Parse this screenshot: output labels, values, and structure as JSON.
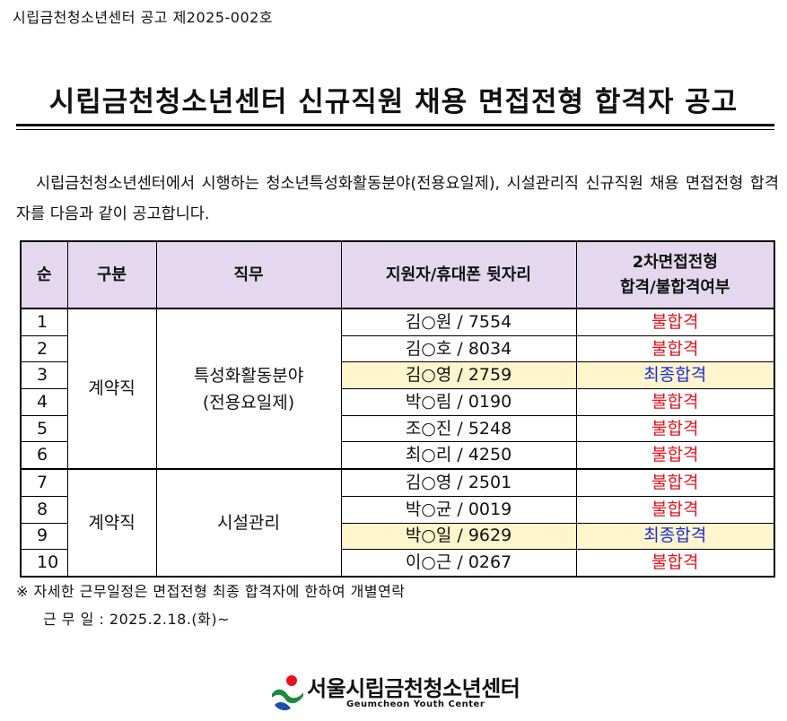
{
  "header": {
    "doc_number": "시립금천청소년센터 공고 제2025-002호",
    "title": "시립금천청소년센터 신규직원 채용 면접전형 합격자 공고"
  },
  "intro": {
    "text": "시립금천청소년센터에서 시행하는 청소년특성화활동분야(전용요일제), 시설관리직 신규직원 채용 면접전형 합격자를 다음과 같이 공고합니다."
  },
  "table": {
    "headers": {
      "num": "순",
      "type": "구분",
      "duty": "직무",
      "applicant": "지원자/휴대폰 뒷자리",
      "result_line1": "2차면접전형",
      "result_line2": "합격/불합격여부"
    },
    "groups": [
      {
        "type": "계약직",
        "duty_line1": "특성화활동분야",
        "duty_line2": "(전용요일제)"
      },
      {
        "type": "계약직",
        "duty_line1": "시설관리",
        "duty_line2": ""
      }
    ],
    "rows": [
      {
        "num": "1",
        "applicant": "김○원 / 7554",
        "result": "불합격",
        "status": "fail"
      },
      {
        "num": "2",
        "applicant": "김○호 / 8034",
        "result": "불합격",
        "status": "fail"
      },
      {
        "num": "3",
        "applicant": "김○영 / 2759",
        "result": "최종합격",
        "status": "pass"
      },
      {
        "num": "4",
        "applicant": "박○림 / 0190",
        "result": "불합격",
        "status": "fail"
      },
      {
        "num": "5",
        "applicant": "조○진 / 5248",
        "result": "불합격",
        "status": "fail"
      },
      {
        "num": "6",
        "applicant": "최○리 / 4250",
        "result": "불합격",
        "status": "fail"
      },
      {
        "num": "7",
        "applicant": "김○영 / 2501",
        "result": "불합격",
        "status": "fail"
      },
      {
        "num": "8",
        "applicant": "박○균 / 0019",
        "result": "불합격",
        "status": "fail"
      },
      {
        "num": "9",
        "applicant": "박○일 / 9629",
        "result": "최종합격",
        "status": "pass"
      },
      {
        "num": "10",
        "applicant": "이○근 / 0267",
        "result": "불합격",
        "status": "fail"
      }
    ]
  },
  "notes": {
    "line1": "※ 자세한 근무일정은 면접전형 최종 합격자에 한하여 개별연락",
    "line2": "근 무 일 : 2025.2.18.(화)~"
  },
  "logo": {
    "name": "서울시립금천청소년센터",
    "subtitle": "Geumcheon Youth Center",
    "icon": "center-logo-icon"
  },
  "colors": {
    "header_bg": "#e4d7ee",
    "pass_highlight": "#fff4cc",
    "fail_text": "#e8121b",
    "pass_text": "#1a2fd6"
  }
}
